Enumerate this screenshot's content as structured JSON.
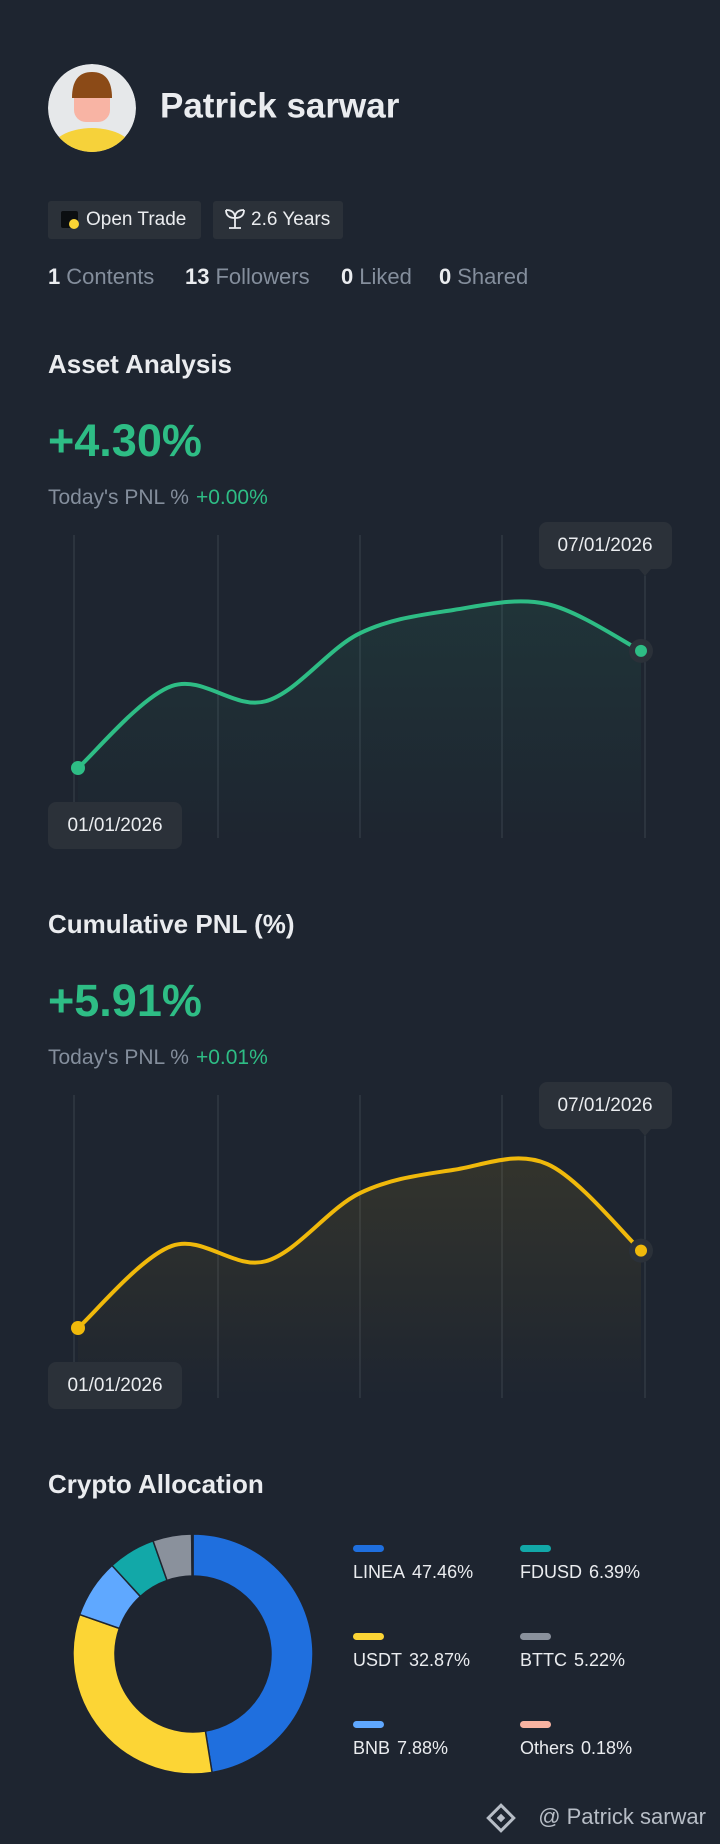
{
  "profile": {
    "name": "Patrick sarwar",
    "badges": [
      "Open Trade",
      "2.6 Years"
    ],
    "stats": [
      {
        "value": 1,
        "label": "Contents"
      },
      {
        "value": 13,
        "label": "Followers"
      },
      {
        "value": 0,
        "label": "Liked"
      },
      {
        "value": 0,
        "label": "Shared"
      }
    ]
  },
  "asset_analysis": {
    "title": "Asset Analysis",
    "value": "+4.30%",
    "today_label": "Today's PNL %",
    "today_value": "+0.00%",
    "chart": {
      "type": "line",
      "color": "#2ebd85",
      "values": [
        0,
        3.01,
        2.45,
        4.94,
        5.8,
        6.02,
        4.3
      ],
      "start_date": "01/01/2026",
      "end_date": "07/01/2026"
    }
  },
  "cumulative_pnl": {
    "title": "Cumulative PNL (%)",
    "value": "+5.91%",
    "today_label": "Today's PNL %",
    "today_value": "+0.01%",
    "chart": {
      "type": "line",
      "color": "#f0b90b",
      "values": [
        0,
        6.27,
        5.1,
        10.29,
        12.08,
        12.53,
        5.91
      ],
      "start_date": "01/01/2026",
      "end_date": "07/01/2026"
    }
  },
  "crypto_allocation": {
    "title": "Crypto Allocation",
    "chart": {
      "type": "donut",
      "categories": [
        "LINEA",
        "USDT",
        "BNB",
        "FDUSD",
        "BTTC",
        "Others"
      ],
      "values": [
        47.46,
        32.87,
        7.88,
        6.39,
        5.22,
        0.18
      ],
      "value_labels": [
        "47.46%",
        "32.87%",
        "7.88%",
        "6.39%",
        "5.22%",
        "0.18%"
      ],
      "colors": [
        "#1f6fde",
        "#fcd535",
        "#5fa8ff",
        "#12a8a8",
        "#8a919c",
        "#f8b3a1"
      ]
    }
  },
  "footer": "@ Patrick sarwar"
}
